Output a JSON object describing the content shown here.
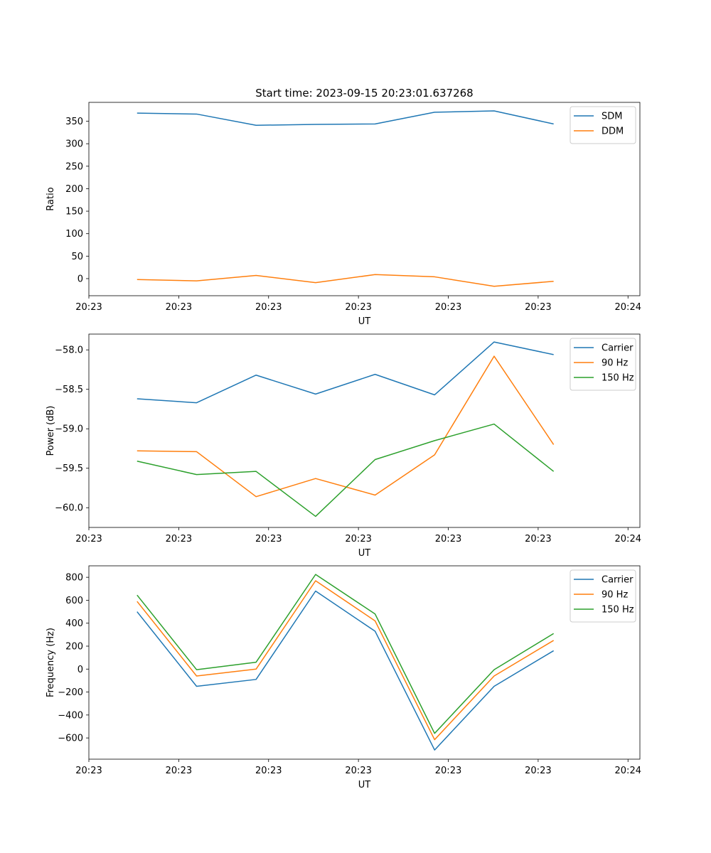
{
  "title": "Start time: 2023-09-15 20:23:01.637268",
  "colors": {
    "blue": "#1f77b4",
    "orange": "#ff7f0e",
    "green": "#2ca02c"
  },
  "chart_data": [
    {
      "type": "line",
      "x": [
        1,
        2,
        3,
        4,
        5,
        6,
        7,
        8
      ],
      "xlim": [
        0.19,
        9.45
      ],
      "xticks": [
        0.19,
        1.7,
        3.21,
        4.72,
        6.23,
        7.74,
        9.25
      ],
      "xtick_labels": [
        "20:23",
        "20:23",
        "20:23",
        "20:23",
        "20:23",
        "20:23",
        "20:24"
      ],
      "xlabel": "UT",
      "ylabel": "Ratio",
      "ylim": [
        -38,
        392
      ],
      "yticks": [
        0,
        50,
        100,
        150,
        200,
        250,
        300,
        350
      ],
      "ytick_labels": [
        "0",
        "50",
        "100",
        "150",
        "200",
        "250",
        "300",
        "350"
      ],
      "legend": "top-right",
      "series": [
        {
          "name": "SDM",
          "color": "#1f77b4",
          "values": [
            368,
            366,
            341,
            343,
            344,
            370,
            373,
            344
          ]
        },
        {
          "name": "DDM",
          "color": "#ff7f0e",
          "values": [
            -2,
            -5,
            7,
            -9,
            9,
            4,
            -17,
            -6
          ]
        }
      ]
    },
    {
      "type": "line",
      "x": [
        1,
        2,
        3,
        4,
        5,
        6,
        7,
        8
      ],
      "xlim": [
        0.19,
        9.45
      ],
      "xticks": [
        0.19,
        1.7,
        3.21,
        4.72,
        6.23,
        7.74,
        9.25
      ],
      "xtick_labels": [
        "20:23",
        "20:23",
        "20:23",
        "20:23",
        "20:23",
        "20:23",
        "20:24"
      ],
      "xlabel": "UT",
      "ylabel": "Power (dB)",
      "ylim": [
        -60.25,
        -57.8
      ],
      "yticks": [
        -60.0,
        -59.5,
        -59.0,
        -58.5,
        -58.0
      ],
      "ytick_labels": [
        "−60.0",
        "−59.5",
        "−59.0",
        "−58.5",
        "−58.0"
      ],
      "legend": "top-right",
      "series": [
        {
          "name": "Carrier",
          "color": "#1f77b4",
          "values": [
            -58.62,
            -58.67,
            -58.32,
            -58.56,
            -58.31,
            -58.57,
            -57.9,
            -58.06
          ]
        },
        {
          "name": "90 Hz",
          "color": "#ff7f0e",
          "values": [
            -59.28,
            -59.29,
            -59.86,
            -59.63,
            -59.84,
            -59.33,
            -58.08,
            -59.2
          ]
        },
        {
          "name": "150 Hz",
          "color": "#2ca02c",
          "values": [
            -59.41,
            -59.58,
            -59.54,
            -60.11,
            -59.39,
            -59.15,
            -58.94,
            -59.54
          ]
        }
      ]
    },
    {
      "type": "line",
      "x": [
        1,
        2,
        3,
        4,
        5,
        6,
        7,
        8
      ],
      "xlim": [
        0.19,
        9.45
      ],
      "xticks": [
        0.19,
        1.7,
        3.21,
        4.72,
        6.23,
        7.74,
        9.25
      ],
      "xtick_labels": [
        "20:23",
        "20:23",
        "20:23",
        "20:23",
        "20:23",
        "20:23",
        "20:24"
      ],
      "xlabel": "UT",
      "ylabel": "Frequency (Hz)",
      "ylim": [
        -785,
        900
      ],
      "yticks": [
        -600,
        -400,
        -200,
        0,
        200,
        400,
        600,
        800
      ],
      "ytick_labels": [
        "−600",
        "−400",
        "−200",
        "0",
        "200",
        "400",
        "600",
        "800"
      ],
      "legend": "top-right",
      "series": [
        {
          "name": "Carrier",
          "color": "#1f77b4",
          "values": [
            500,
            -150,
            -90,
            680,
            330,
            -705,
            -150,
            160
          ]
        },
        {
          "name": "90 Hz",
          "color": "#ff7f0e",
          "values": [
            590,
            -60,
            0,
            770,
            420,
            -615,
            -60,
            250
          ]
        },
        {
          "name": "150 Hz",
          "color": "#2ca02c",
          "values": [
            645,
            -5,
            60,
            825,
            480,
            -560,
            -5,
            310
          ]
        }
      ]
    }
  ]
}
